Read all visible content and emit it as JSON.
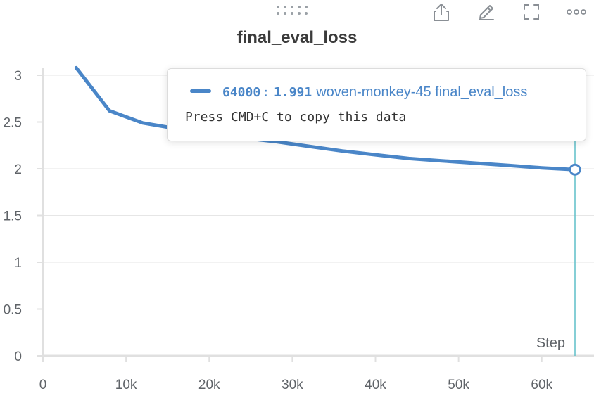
{
  "panel": {
    "title": "final_eval_loss",
    "toolbar": {
      "icons": [
        "drag-handle-icon",
        "share-icon",
        "edit-icon",
        "fullscreen-icon",
        "more-options-icon"
      ]
    }
  },
  "chart_data": {
    "type": "line",
    "title": "final_eval_loss",
    "xlabel": "Step",
    "ylabel": "",
    "xlim": [
      0,
      64000
    ],
    "ylim": [
      0,
      3
    ],
    "x_ticks": [
      0,
      10000,
      20000,
      30000,
      40000,
      50000,
      60000
    ],
    "x_tick_labels": [
      "0",
      "10k",
      "20k",
      "30k",
      "40k",
      "50k",
      "60k"
    ],
    "y_ticks": [
      0,
      0.5,
      1,
      1.5,
      2,
      2.5,
      3
    ],
    "y_tick_labels": [
      "0",
      "0.5",
      "1",
      "1.5",
      "2",
      "2.5",
      "3"
    ],
    "grid": true,
    "series": [
      {
        "name": "woven-monkey-45 final_eval_loss",
        "color": "#4a86c8",
        "x": [
          4000,
          8000,
          12000,
          16000,
          20000,
          24000,
          28000,
          32000,
          36000,
          40000,
          44000,
          48000,
          52000,
          56000,
          60000,
          64000
        ],
        "y": [
          3.08,
          2.62,
          2.49,
          2.43,
          2.38,
          2.33,
          2.29,
          2.24,
          2.19,
          2.15,
          2.11,
          2.085,
          2.06,
          2.035,
          2.01,
          1.991
        ]
      }
    ],
    "hover": {
      "x": 64000,
      "cursor_color": "#5fbfc9"
    }
  },
  "tooltip": {
    "step": "64000",
    "colon": ":",
    "value": "1.991",
    "run": "woven-monkey-45 final_eval_loss",
    "hint": "Press CMD+C to copy this data"
  }
}
